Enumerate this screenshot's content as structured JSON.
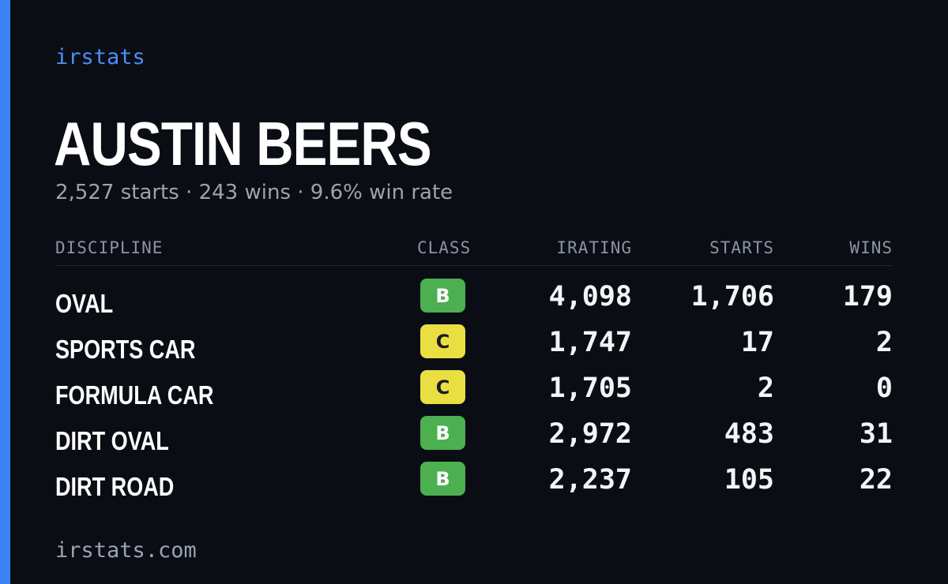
{
  "brand": "irstats",
  "player": {
    "name": "AUSTIN BEERS",
    "summary": "2,527 starts · 243 wins · 9.6% win rate"
  },
  "table": {
    "headers": {
      "discipline": "DISCIPLINE",
      "class": "CLASS",
      "irating": "IRATING",
      "starts": "STARTS",
      "wins": "WINS"
    },
    "rows": [
      {
        "discipline": "OVAL",
        "class": "B",
        "class_color": "#4caf50",
        "irating": "4,098",
        "starts": "1,706",
        "wins": "179"
      },
      {
        "discipline": "SPORTS CAR",
        "class": "C",
        "class_color": "#eadf42",
        "irating": "1,747",
        "starts": "17",
        "wins": "2"
      },
      {
        "discipline": "FORMULA CAR",
        "class": "C",
        "class_color": "#eadf42",
        "irating": "1,705",
        "starts": "2",
        "wins": "0"
      },
      {
        "discipline": "DIRT OVAL",
        "class": "B",
        "class_color": "#4caf50",
        "irating": "2,972",
        "starts": "483",
        "wins": "31"
      },
      {
        "discipline": "DIRT ROAD",
        "class": "B",
        "class_color": "#4caf50",
        "irating": "2,237",
        "starts": "105",
        "wins": "22"
      }
    ]
  },
  "footer": {
    "site": "irstats.com"
  },
  "colors": {
    "accent": "#3b82f6",
    "background": "#0a0d14",
    "class_b": "#4caf50",
    "class_c": "#eadf42"
  }
}
